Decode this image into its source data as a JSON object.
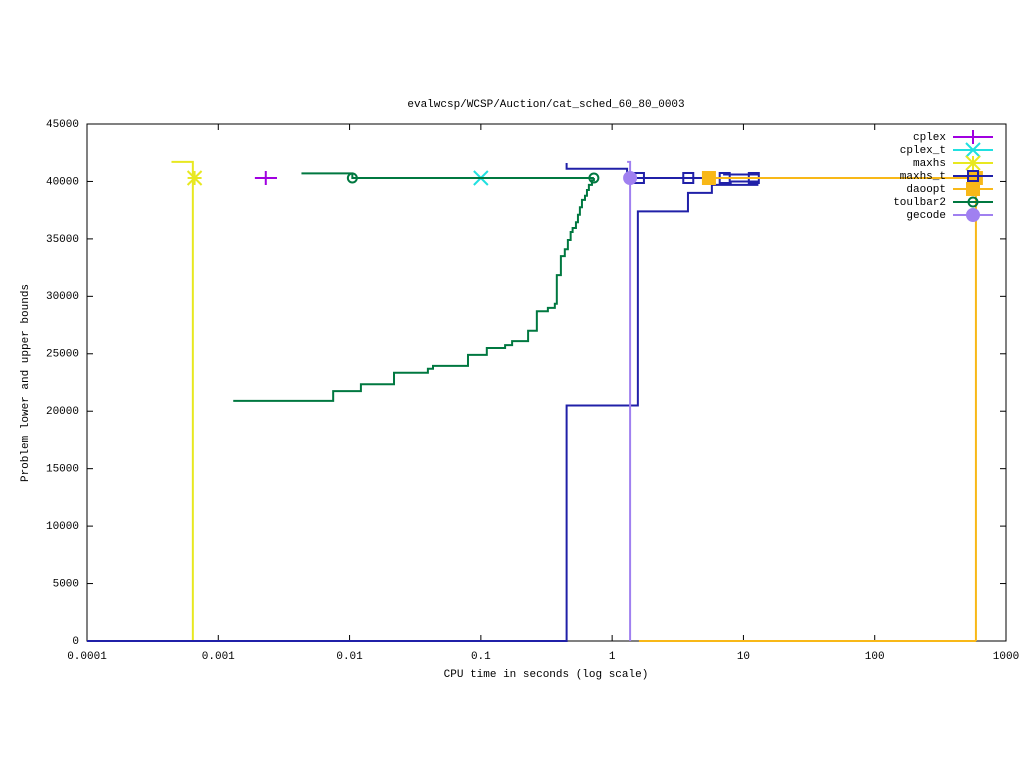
{
  "chart_data": {
    "type": "line",
    "title": "evalwcsp/WCSP/Auction/cat_sched_60_80_0003",
    "xlabel": "CPU time in seconds (log scale)",
    "ylabel": "Problem lower and upper bounds",
    "xlog": true,
    "xlim": [
      0.0001,
      1000
    ],
    "xticks": [
      0.0001,
      0.001,
      0.01,
      0.1,
      1,
      10,
      100,
      1000
    ],
    "ylim": [
      0,
      45000
    ],
    "yticks": [
      0,
      5000,
      10000,
      15000,
      20000,
      25000,
      30000,
      35000,
      40000,
      45000
    ],
    "grid": false,
    "legend": "top-right",
    "series": [
      {
        "name": "cplex",
        "color": "#a000e0",
        "marker": "plus",
        "x": [
          0.0019,
          0.0028
        ],
        "values": [
          40300,
          40300
        ],
        "points": {
          "x": [
            0.0023
          ],
          "values": [
            40300
          ]
        }
      },
      {
        "name": "cplex_t",
        "color": "#20e0e0",
        "marker": "cross",
        "x": [],
        "values": [],
        "points": {
          "x": [
            0.1
          ],
          "values": [
            40300
          ]
        }
      },
      {
        "name": "maxhs",
        "color": "#e8e820",
        "marker": "star",
        "x": [
          0.00044,
          0.00064,
          0.00064
        ],
        "values": [
          41700,
          41700,
          0
        ],
        "points": {
          "x": [
            0.00066
          ],
          "values": [
            40300
          ]
        }
      },
      {
        "name": "maxhs_t",
        "color": "#2020a8",
        "marker": "square",
        "x": [
          0.0001,
          0.45,
          0.45,
          1.57,
          1.57,
          3.78,
          3.78,
          5.75,
          5.75,
          8,
          8,
          13,
          null,
          0.45,
          0.45,
          1.3,
          1.3,
          1.5,
          1.5,
          13,
          null,
          7,
          13,
          null,
          7,
          13
        ],
        "values": [
          0,
          0,
          20500,
          20500,
          37400,
          37400,
          39000,
          39000,
          39700,
          39700,
          40000,
          40000,
          null,
          41600,
          41100,
          41100,
          40600,
          40600,
          40300,
          40300,
          null,
          40600,
          40600,
          null,
          39700,
          39700
        ],
        "points": {
          "x": [
            1.6,
            3.8,
            7.2,
            12
          ],
          "values": [
            40300,
            40300,
            40300,
            40300
          ]
        }
      },
      {
        "name": "daoopt",
        "color": "#f8b818",
        "marker": "fsquare",
        "x": [
          5.46,
          590,
          590,
          null,
          1.6,
          590
        ],
        "values": [
          40300,
          40300,
          0,
          null,
          0,
          0
        ],
        "points": {
          "x": [
            5.46,
            590
          ],
          "values": [
            40300,
            40300
          ]
        }
      },
      {
        "name": "toulbar2",
        "color": "#007840",
        "marker": "circle",
        "x": [
          0.0013,
          0.0075,
          0.0075,
          0.0122,
          0.0122,
          0.0218,
          0.0218,
          0.0395,
          0.0395,
          0.0432,
          0.0432,
          0.0798,
          0.0798,
          0.111,
          0.111,
          0.153,
          0.153,
          0.173,
          0.173,
          0.229,
          0.229,
          0.267,
          0.267,
          0.324,
          0.324,
          0.366,
          0.366,
          0.379,
          0.379,
          0.407,
          0.407,
          0.436,
          0.436,
          0.46,
          0.46,
          0.483,
          0.483,
          0.5,
          0.5,
          0.53,
          0.53,
          0.549,
          0.549,
          0.568,
          0.568,
          0.589,
          0.589,
          0.621,
          0.621,
          0.643,
          0.643,
          0.665,
          0.665,
          0.702,
          0.702,
          0.726,
          0.726,
          null,
          0.0043,
          0.0105,
          0.0105,
          0.726
        ],
        "values": [
          20900,
          20900,
          21750,
          21750,
          22350,
          22350,
          23350,
          23350,
          23700,
          23700,
          23950,
          23950,
          24900,
          24900,
          25500,
          25500,
          25750,
          25750,
          26100,
          26100,
          27000,
          27000,
          28700,
          28700,
          29000,
          29000,
          29350,
          29350,
          31850,
          31850,
          33500,
          33500,
          34100,
          34100,
          34900,
          34900,
          35600,
          35600,
          35950,
          35950,
          36450,
          36450,
          37100,
          37100,
          37750,
          37750,
          38400,
          38400,
          38750,
          38750,
          39250,
          39250,
          39700,
          39700,
          40100,
          40100,
          40300,
          null,
          40700,
          40700,
          40300,
          40300
        ],
        "points": {
          "x": [
            0.0105,
            0.726
          ],
          "values": [
            40300,
            40300
          ]
        }
      },
      {
        "name": "gecode",
        "color": "#a080f0",
        "marker": "fcircle",
        "x": [
          1.3,
          1.37,
          1.37
        ],
        "values": [
          41700,
          41700,
          0
        ],
        "points": {
          "x": [
            1.37
          ],
          "values": [
            40300
          ]
        }
      }
    ]
  }
}
